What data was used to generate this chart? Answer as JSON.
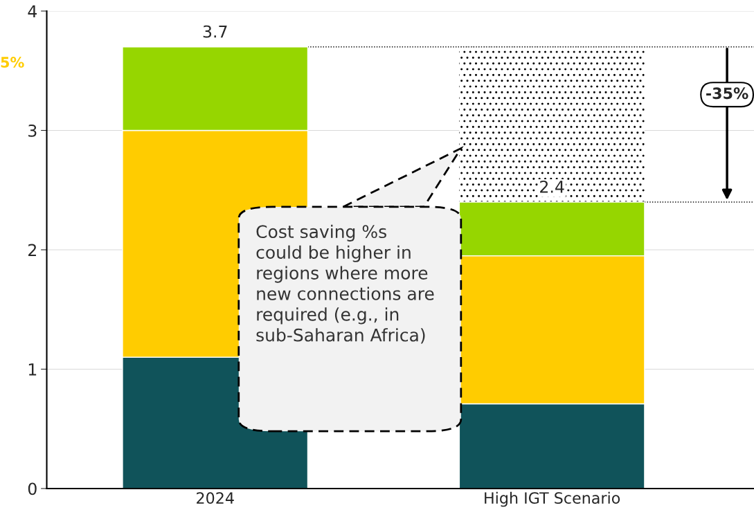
{
  "chart_data": {
    "type": "bar",
    "stacked": true,
    "categories": [
      "2024",
      "High IGT Scenario"
    ],
    "series": [
      {
        "color": "#10535a",
        "values": [
          1.1,
          0.71
        ]
      },
      {
        "color": "#ffcc00",
        "values": [
          1.9,
          1.24
        ]
      },
      {
        "color": "#96d600",
        "values": [
          0.7,
          0.45
        ]
      }
    ],
    "totals": [
      "3.7",
      "2.4"
    ],
    "ylim": [
      0,
      4
    ],
    "yticks": [
      0,
      1,
      2,
      3,
      4
    ],
    "grid": "y",
    "legend": false,
    "bands": [
      {
        "axis": "y",
        "from": 2.4,
        "to": 3.7
      }
    ],
    "ref_lines": [
      {
        "axis": "y",
        "value": 3.7,
        "line_style": "dotted"
      },
      {
        "axis": "y",
        "value": 2.4,
        "line_style": "dotted"
      }
    ],
    "annotations": [
      "5%",
      "-35%",
      "Cost saving %s could be higher in regions where more new connections are required (e.g., in sub-Saharan Africa)"
    ]
  }
}
